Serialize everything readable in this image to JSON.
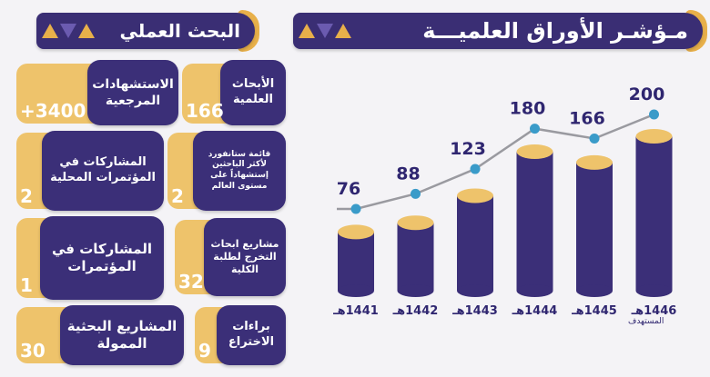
{
  "headers": {
    "research_title": "البحث العملي",
    "index_title": "مـؤشـر الأوراق العلميـــة"
  },
  "colors": {
    "purple": "#3b2f78",
    "gold": "#eec36b",
    "accent_blue": "#3a9bc9"
  },
  "cards": [
    {
      "label": "الأبحاث\nالعلمية",
      "value": "166"
    },
    {
      "label": "الاستشهادات\nالمرجعية",
      "value": "+3400"
    },
    {
      "label": "قائمة ستانفورد\nلأكثر الباحثين\nإستشهاداً على\nمستوى العالم",
      "value": "2"
    },
    {
      "label": "المشاركات في\nالمؤتمرات المحلية",
      "value": "2"
    },
    {
      "label": "مشاريع ابحاث\nالتخرج لطلبة\nالكلية",
      "value": "32"
    },
    {
      "label": "المشاركات في\nالمؤتمرات",
      "value": "1"
    },
    {
      "label": "براءات\nالاختراع",
      "value": "9"
    },
    {
      "label": "المشاريع البحثية\nالممولة",
      "value": "30"
    }
  ],
  "chart_data": {
    "type": "bar",
    "categories": [
      "1441هـ",
      "1442هـ",
      "1443هـ",
      "1444هـ",
      "1445هـ",
      "1446هـ"
    ],
    "values": [
      76,
      88,
      123,
      180,
      166,
      200
    ],
    "target_note": "المستهدف",
    "title": "مـؤشـر الأوراق العلميـــة",
    "grid": false
  }
}
